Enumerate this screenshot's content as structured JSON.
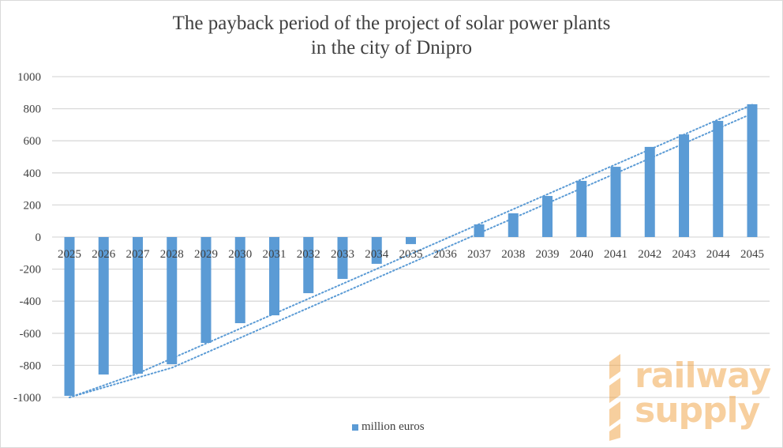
{
  "chart_data": {
    "type": "bar",
    "title": "The payback period of the project of solar power plants",
    "title_line2": "in the city of Dnipro",
    "categories": [
      "2025",
      "2026",
      "2027",
      "2028",
      "2029",
      "2030",
      "2031",
      "2032",
      "2033",
      "2034",
      "2035",
      "2036",
      "2037",
      "2038",
      "2039",
      "2040",
      "2041",
      "2042",
      "2043",
      "2044",
      "2045"
    ],
    "series": [
      {
        "name": "million euros",
        "color": "#5b9bd5",
        "values": [
          -990,
          -857,
          -852,
          -793,
          -660,
          -537,
          -488,
          -350,
          -261,
          -167,
          -44,
          0,
          79,
          148,
          256,
          350,
          438,
          562,
          640,
          724,
          828
        ]
      }
    ],
    "trendlines": [
      {
        "style": "dotted",
        "color": "#5b9bd5",
        "points": [
          [
            2025,
            -1000
          ],
          [
            2027,
            -850
          ],
          [
            2045,
            825
          ]
        ]
      },
      {
        "style": "dotted",
        "color": "#5b9bd5",
        "points": [
          [
            2025,
            -1000
          ],
          [
            2028,
            -815
          ],
          [
            2045,
            770
          ]
        ]
      }
    ],
    "ylim": [
      -1000,
      1000
    ],
    "yticks": [
      1000,
      800,
      600,
      400,
      200,
      0,
      -200,
      -400,
      -600,
      -800,
      -1000
    ],
    "ytick_labels": [
      "1000",
      "800",
      "600",
      "400",
      "200",
      "0",
      "-200",
      "-400",
      "-600",
      "-800",
      "-1000"
    ],
    "grid": true,
    "legend": "bottom",
    "xlabel": "",
    "ylabel": ""
  },
  "watermark": {
    "line1": "railway",
    "line2": "supply",
    "color": "#f0a040"
  }
}
